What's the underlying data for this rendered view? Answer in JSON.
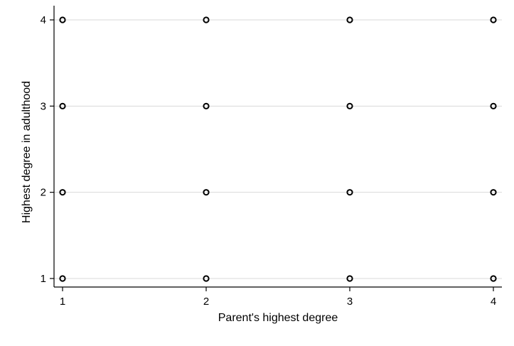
{
  "chart_data": {
    "type": "scatter",
    "title": "",
    "xlabel": "Parent's highest degree",
    "ylabel": "Highest degree in adulthood",
    "xlim": [
      1,
      4
    ],
    "ylim": [
      1,
      4
    ],
    "xticks": [
      1,
      2,
      3,
      4
    ],
    "yticks": [
      1,
      2,
      3,
      4
    ],
    "grid": "horizontal",
    "legend": "none",
    "colors": {
      "marker_stroke": "#000000",
      "grid": "#d9d9d9",
      "axis": "#000000",
      "background": "#ffffff"
    },
    "series": [
      {
        "marker": "hollow-circle",
        "points": [
          {
            "x": 1,
            "y": 1
          },
          {
            "x": 1,
            "y": 2
          },
          {
            "x": 1,
            "y": 3
          },
          {
            "x": 1,
            "y": 4
          },
          {
            "x": 2,
            "y": 1
          },
          {
            "x": 2,
            "y": 2
          },
          {
            "x": 2,
            "y": 3
          },
          {
            "x": 2,
            "y": 4
          },
          {
            "x": 3,
            "y": 1
          },
          {
            "x": 3,
            "y": 2
          },
          {
            "x": 3,
            "y": 3
          },
          {
            "x": 3,
            "y": 4
          },
          {
            "x": 4,
            "y": 1
          },
          {
            "x": 4,
            "y": 2
          },
          {
            "x": 4,
            "y": 3
          },
          {
            "x": 4,
            "y": 4
          }
        ]
      }
    ]
  }
}
